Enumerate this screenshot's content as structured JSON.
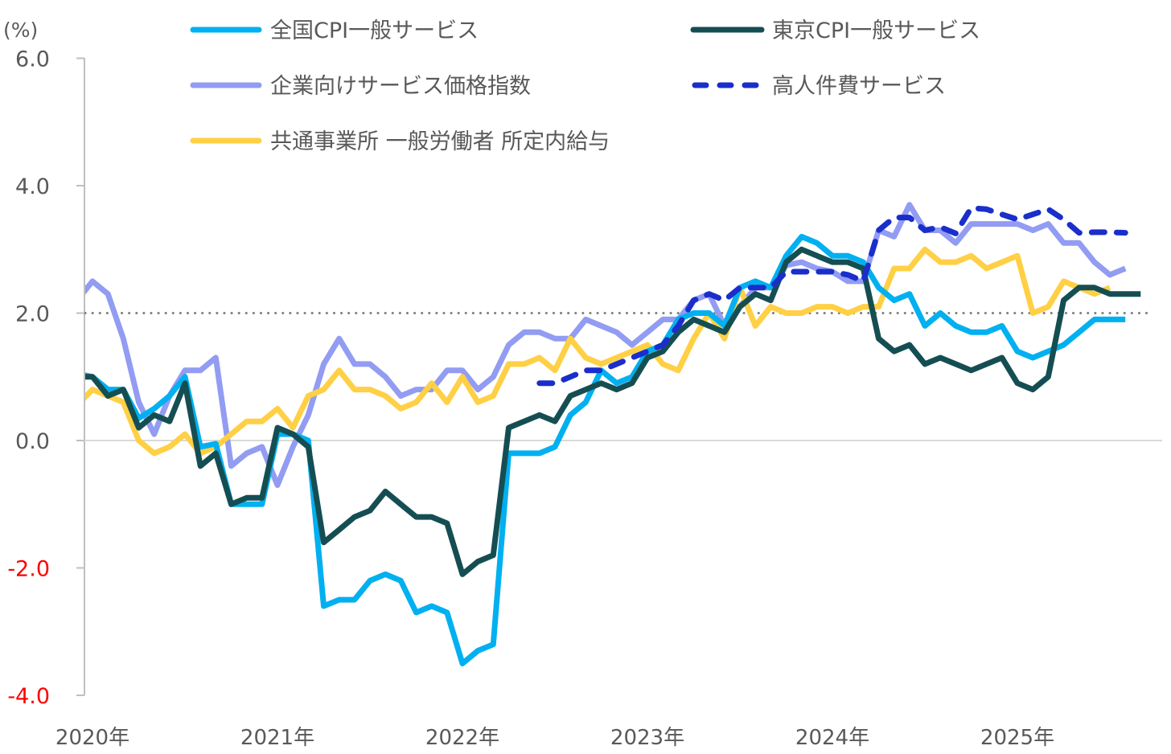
{
  "chart_data": {
    "type": "line",
    "title": "",
    "xlabel": "",
    "ylabel": "(%)",
    "ylim": [
      -4.0,
      6.0
    ],
    "yticks": [
      {
        "value": 6.0,
        "label": "6.0"
      },
      {
        "value": 4.0,
        "label": "4.0"
      },
      {
        "value": 2.0,
        "label": "2.0"
      },
      {
        "value": 0.0,
        "label": "0.0"
      },
      {
        "value": -2.0,
        "label": "-2.0"
      },
      {
        "value": -4.0,
        "label": "-4.0"
      }
    ],
    "negative_tick_color": "#ff0000",
    "xticks": [
      {
        "month_index": 0,
        "label": "2020年"
      },
      {
        "month_index": 12,
        "label": "2021年"
      },
      {
        "month_index": 24,
        "label": "2022年"
      },
      {
        "month_index": 36,
        "label": "2023年"
      },
      {
        "month_index": 48,
        "label": "2024年"
      },
      {
        "month_index": 60,
        "label": "2025年"
      }
    ],
    "x_unit": "month index (0 = 2020-01, -1 = 2019-12)",
    "reference_line": {
      "value": 2.0,
      "style": "dotted",
      "color": "#7f7f7f"
    },
    "grid": false,
    "legend_position": "top",
    "series": [
      {
        "name": "全国CPI一般サービス",
        "color": "#00b0f0",
        "dash": false,
        "start_index": -1,
        "values": [
          1.05,
          1.0,
          0.8,
          0.8,
          0.35,
          0.5,
          0.7,
          1.0,
          -0.1,
          -0.05,
          -1.0,
          -1.0,
          -1.0,
          0.1,
          0.1,
          0.0,
          -2.6,
          -2.5,
          -2.5,
          -2.2,
          -2.1,
          -2.2,
          -2.7,
          -2.6,
          -2.7,
          -3.5,
          -3.3,
          -3.2,
          -0.2,
          -0.2,
          -0.2,
          -0.1,
          0.4,
          0.6,
          1.1,
          0.9,
          1.0,
          1.4,
          1.5,
          1.9,
          2.0,
          2.0,
          1.8,
          2.4,
          2.5,
          2.4,
          2.9,
          3.2,
          3.1,
          2.9,
          2.9,
          2.8,
          2.4,
          2.2,
          2.3,
          1.8,
          2.0,
          1.8,
          1.7,
          1.7,
          1.8,
          1.4,
          1.3,
          1.4,
          1.5,
          1.7,
          1.9,
          1.9,
          1.9
        ]
      },
      {
        "name": "東京CPI一般サービス",
        "color": "#154e52",
        "dash": false,
        "start_index": -1,
        "values": [
          1.0,
          1.0,
          0.7,
          0.8,
          0.2,
          0.4,
          0.3,
          0.9,
          -0.4,
          -0.2,
          -1.0,
          -0.9,
          -0.9,
          0.2,
          0.1,
          -0.1,
          -1.6,
          -1.4,
          -1.2,
          -1.1,
          -0.8,
          -1.0,
          -1.2,
          -1.2,
          -1.3,
          -2.1,
          -1.9,
          -1.8,
          0.2,
          0.3,
          0.4,
          0.3,
          0.7,
          0.8,
          0.9,
          0.8,
          0.9,
          1.3,
          1.4,
          1.7,
          1.9,
          1.8,
          1.7,
          2.1,
          2.3,
          2.2,
          2.8,
          3.0,
          2.9,
          2.8,
          2.8,
          2.7,
          1.6,
          1.4,
          1.5,
          1.2,
          1.3,
          1.2,
          1.1,
          1.2,
          1.3,
          0.9,
          0.8,
          1.0,
          2.2,
          2.4,
          2.4,
          2.3,
          2.3,
          2.3
        ]
      },
      {
        "name": "企業向けサービス価格指数",
        "color": "#929cf2",
        "dash": false,
        "start_index": -1,
        "values": [
          2.2,
          2.5,
          2.3,
          1.6,
          0.6,
          0.1,
          0.7,
          1.1,
          1.1,
          1.3,
          -0.4,
          -0.2,
          -0.1,
          -0.7,
          -0.1,
          0.4,
          1.2,
          1.6,
          1.2,
          1.2,
          1.0,
          0.7,
          0.8,
          0.8,
          1.1,
          1.1,
          0.8,
          1.0,
          1.5,
          1.7,
          1.7,
          1.6,
          1.6,
          1.9,
          1.8,
          1.7,
          1.5,
          1.7,
          1.9,
          1.9,
          2.2,
          2.3,
          1.8,
          2.1,
          2.4,
          2.4,
          2.75,
          2.8,
          2.7,
          2.65,
          2.5,
          2.5,
          3.3,
          3.2,
          3.7,
          3.3,
          3.3,
          3.1,
          3.4,
          3.4,
          3.4,
          3.4,
          3.3,
          3.4,
          3.1,
          3.1,
          2.8,
          2.6,
          2.7
        ]
      },
      {
        "name": "高人件費サービス",
        "color": "#1a2ecb",
        "dash": true,
        "start_index": 29,
        "values": [
          0.9,
          0.9,
          1.0,
          1.1,
          1.1,
          1.2,
          1.3,
          1.4,
          1.5,
          1.8,
          2.2,
          2.3,
          2.2,
          2.4,
          2.4,
          2.4,
          2.65,
          2.65,
          2.65,
          2.65,
          2.6,
          2.5,
          3.3,
          3.5,
          3.5,
          3.3,
          3.35,
          3.25,
          3.65,
          3.63,
          3.55,
          3.47,
          3.55,
          3.63,
          3.47,
          3.26,
          3.27,
          3.27,
          3.26
        ]
      },
      {
        "name": "共通事業所 一般労働者 所定内給与",
        "color": "#ffd045",
        "dash": false,
        "start_index": -1,
        "values": [
          0.55,
          0.8,
          0.7,
          0.6,
          0.0,
          -0.2,
          -0.1,
          0.1,
          -0.2,
          -0.1,
          0.1,
          0.3,
          0.3,
          0.5,
          0.2,
          0.7,
          0.8,
          1.1,
          0.8,
          0.8,
          0.7,
          0.5,
          0.6,
          0.9,
          0.6,
          1.0,
          0.6,
          0.7,
          1.2,
          1.2,
          1.3,
          1.1,
          1.6,
          1.3,
          1.2,
          1.3,
          1.4,
          1.5,
          1.2,
          1.1,
          1.6,
          2.0,
          1.6,
          2.4,
          1.8,
          2.1,
          2.0,
          2.0,
          2.1,
          2.1,
          2.0,
          2.1,
          2.1,
          2.7,
          2.7,
          3.0,
          2.8,
          2.8,
          2.9,
          2.7,
          2.8,
          2.9,
          2.0,
          2.1,
          2.5,
          2.4,
          2.3,
          2.4
        ]
      }
    ],
    "legend_order": [
      0,
      1,
      2,
      3,
      4
    ]
  }
}
